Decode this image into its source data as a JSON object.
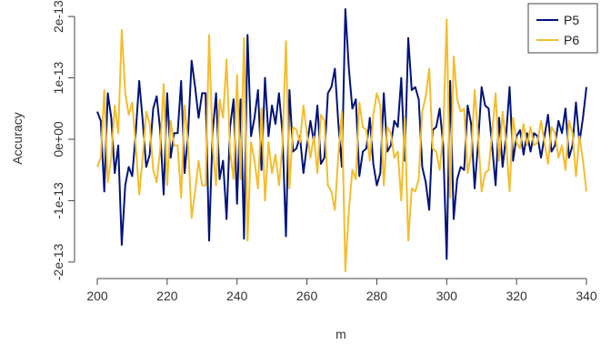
{
  "chart_data": {
    "type": "line",
    "title": "",
    "xlabel": "m",
    "ylabel": "Accuracy",
    "xlim": [
      200,
      340
    ],
    "ylim": [
      -2.15e-13,
      2.15e-13
    ],
    "xticks": [
      200,
      220,
      240,
      260,
      280,
      300,
      320,
      340
    ],
    "xtick_labels": [
      "200",
      "220",
      "240",
      "260",
      "280",
      "300",
      "320",
      "340"
    ],
    "yticks": [
      -2e-13,
      -1e-13,
      0,
      1e-13,
      2e-13
    ],
    "ytick_labels": [
      "-2e-13",
      "-1e-13",
      "0e+00",
      "1e-13",
      "2e-13"
    ],
    "grid": false,
    "legend_position": "top-right",
    "x": [
      200,
      201,
      202,
      203,
      204,
      205,
      206,
      207,
      208,
      209,
      210,
      211,
      212,
      213,
      214,
      215,
      216,
      217,
      218,
      219,
      220,
      221,
      222,
      223,
      224,
      225,
      226,
      227,
      228,
      229,
      230,
      231,
      232,
      233,
      234,
      235,
      236,
      237,
      238,
      239,
      240,
      241,
      242,
      243,
      244,
      245,
      246,
      247,
      248,
      249,
      250,
      251,
      252,
      253,
      254,
      255,
      256,
      257,
      258,
      259,
      260,
      261,
      262,
      263,
      264,
      265,
      266,
      267,
      268,
      269,
      270,
      271,
      272,
      273,
      274,
      275,
      276,
      277,
      278,
      279,
      280,
      281,
      282,
      283,
      284,
      285,
      286,
      287,
      288,
      289,
      290,
      291,
      292,
      293,
      294,
      295,
      296,
      297,
      298,
      299,
      300,
      301,
      302,
      303,
      304,
      305,
      306,
      307,
      308,
      309,
      310,
      311,
      312,
      313,
      314,
      315,
      316,
      317,
      318,
      319,
      320,
      321,
      322,
      323,
      324,
      325,
      326,
      327,
      328,
      329,
      330,
      331,
      332,
      333,
      334,
      335,
      336,
      337,
      338,
      339,
      340
    ],
    "series": [
      {
        "name": "P5",
        "color": "#00137a",
        "values": [
          4.5e-14,
          3e-14,
          -8.5e-14,
          7.5e-14,
          3.5e-14,
          -5.5e-14,
          -1e-14,
          -1.72e-13,
          -7.5e-14,
          -4.5e-14,
          -6e-14,
          1e-14,
          9.5e-14,
          3e-14,
          -4.5e-14,
          -2.5e-14,
          5e-14,
          7e-14,
          1.5e-14,
          -9e-14,
          7.5e-14,
          -3e-14,
          1e-14,
          1e-14,
          9.5e-14,
          -5.5e-14,
          1e-14,
          1.28e-13,
          8.5e-14,
          3.5e-14,
          7.5e-14,
          7.5e-14,
          -1.65e-13,
          1e-14,
          7.5e-14,
          -6.5e-14,
          -3.5e-14,
          -1.3e-13,
          2e-14,
          6.5e-14,
          -1.05e-13,
          6.5e-14,
          -1.62e-13,
          1.7e-13,
          5e-15,
          3.5e-14,
          8e-14,
          -5e-14,
          1e-13,
          5e-15,
          5.5e-14,
          2.5e-14,
          7.5e-14,
          1e-14,
          -1.58e-13,
          8e-14,
          -2e-14,
          -1.5e-14,
          5e-15,
          -5.5e-14,
          -1e-14,
          3e-14,
          -5e-15,
          5.5e-14,
          -4e-14,
          -3e-14,
          7.5e-14,
          8.5e-14,
          1.15e-13,
          2.5e-14,
          -4.5e-14,
          2.12e-13,
          1.15e-13,
          5e-14,
          6.5e-14,
          -6e-14,
          -2e-14,
          -1.5e-14,
          3.5e-14,
          -4e-14,
          -7.5e-14,
          -5.5e-14,
          7.5e-14,
          -2e-14,
          -1e-14,
          3e-14,
          2e-14,
          1e-13,
          -3.5e-14,
          1.65e-13,
          8e-14,
          8.5e-14,
          6.5e-14,
          -4.5e-14,
          -7e-14,
          -1.15e-13,
          1.5e-14,
          2e-14,
          5e-14,
          -1e-14,
          -1.95e-13,
          9.5e-14,
          -1.3e-13,
          -6.5e-14,
          -4.5e-14,
          -5e-14,
          5.5e-14,
          2.5e-14,
          -8e-14,
          -5e-15,
          8.5e-14,
          5.5e-14,
          5e-14,
          -1e-14,
          -7.5e-14,
          3.5e-14,
          -4.5e-14,
          5e-15,
          8.5e-14,
          -3.5e-14,
          5e-15,
          1.5e-14,
          -2.5e-14,
          1e-14,
          -2e-14,
          1e-14,
          5e-15,
          -3e-14,
          5e-15,
          4e-14,
          -2e-14,
          -1e-14,
          3e-14,
          1e-14,
          5e-14,
          -3e-14,
          -1e-14,
          6e-14,
          -5e-15,
          3.5e-14,
          8.5e-14
        ]
      },
      {
        "name": "P6",
        "color": "#f5bd2c",
        "values": [
          -4.5e-14,
          -3e-14,
          8e-14,
          -7e-14,
          -3e-14,
          5.5e-14,
          1e-14,
          1.78e-13,
          7.5e-14,
          4e-14,
          6e-14,
          -1e-14,
          -9e-14,
          -3e-14,
          4.5e-14,
          2.5e-14,
          -5e-14,
          -7e-14,
          -1.5e-14,
          9e-14,
          -7.5e-14,
          3e-14,
          -1e-14,
          -1e-14,
          -9.5e-14,
          5.5e-14,
          -1e-14,
          -1.28e-13,
          -8.5e-14,
          -3.5e-14,
          -7.5e-14,
          -7.5e-14,
          1.7e-13,
          -1e-14,
          -7.5e-14,
          6.5e-14,
          3.5e-14,
          1.3e-13,
          -2e-14,
          -6.5e-14,
          1.05e-13,
          -6.5e-14,
          1.65e-13,
          -1.65e-13,
          -5e-15,
          -3.5e-14,
          -8e-14,
          5e-14,
          -1e-13,
          -5e-15,
          -5.5e-14,
          -2.5e-14,
          -7.5e-14,
          -1e-14,
          1.6e-13,
          -8e-14,
          2e-14,
          1.5e-14,
          -5e-15,
          5.5e-14,
          1e-14,
          -3e-14,
          5e-15,
          -5.5e-14,
          4e-14,
          3e-14,
          -7.5e-14,
          -8.5e-14,
          -1.15e-13,
          -2.5e-14,
          4.5e-14,
          -2.15e-13,
          -1.15e-13,
          -5e-14,
          -6.5e-14,
          6e-14,
          2e-14,
          1.5e-14,
          -3.5e-14,
          4e-14,
          7.5e-14,
          5.5e-14,
          -7.5e-14,
          2e-14,
          1e-14,
          -3e-14,
          -2e-14,
          -1e-13,
          3.5e-14,
          -1.65e-13,
          -8e-14,
          -8.5e-14,
          -6.5e-14,
          4.5e-14,
          7e-14,
          1.15e-13,
          -1.5e-14,
          -2e-14,
          -5e-14,
          1e-14,
          1.95e-13,
          -9.5e-14,
          1.35e-13,
          6.5e-14,
          4.5e-14,
          5e-14,
          -5.5e-14,
          -2.5e-14,
          8e-14,
          5e-15,
          -8.5e-14,
          -5.5e-14,
          -5e-14,
          1e-14,
          7.5e-14,
          -3.5e-14,
          4.5e-14,
          -5e-15,
          -8.5e-14,
          3.5e-14,
          -5e-15,
          -1.5e-14,
          2.5e-14,
          -1e-14,
          2e-14,
          -1e-14,
          -5e-15,
          3e-14,
          -5e-15,
          -4e-14,
          2e-14,
          1e-14,
          -3e-14,
          -1e-14,
          -5e-14,
          3e-14,
          1e-14,
          -6e-14,
          5e-15,
          -3.5e-14,
          -8.5e-14
        ]
      }
    ]
  }
}
